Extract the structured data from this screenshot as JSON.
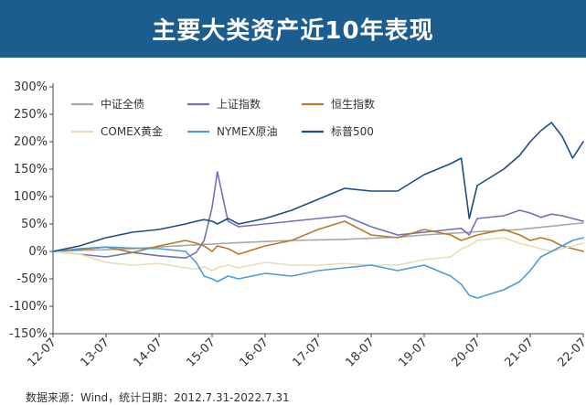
{
  "header": {
    "title": "主要大类资产近10年表现"
  },
  "footer": {
    "source": "数据来源：Wind，统计日期：2012.7.31-2022.7.31"
  },
  "chart_data": {
    "type": "line",
    "title": "主要大类资产近10年表现",
    "xlabel": "",
    "ylabel": "",
    "ylim": [
      -150,
      300
    ],
    "y_unit": "%",
    "yticks": [
      "-150%",
      "-100%",
      "-50%",
      "0%",
      "50%",
      "100%",
      "150%",
      "200%",
      "250%",
      "300%"
    ],
    "xticks": [
      "12-07",
      "13-07",
      "14-07",
      "15-07",
      "16-07",
      "17-07",
      "18-07",
      "19-07",
      "20-07",
      "21-07",
      "22-07"
    ],
    "grid": false,
    "legend_position": "top-left",
    "x": [
      0,
      0.5,
      1,
      1.5,
      2,
      2.5,
      2.7,
      2.85,
      3,
      3.1,
      3.3,
      3.5,
      4,
      4.5,
      5,
      5.5,
      6,
      6.5,
      7,
      7.5,
      7.7,
      7.85,
      8,
      8.5,
      8.8,
      9,
      9.2,
      9.4,
      9.6,
      9.8,
      10
    ],
    "series": [
      {
        "name": "中证全债",
        "color": "#a8a8a8",
        "values": [
          0,
          2,
          3,
          5,
          8,
          11,
          12,
          13,
          13,
          14,
          15,
          16,
          18,
          20,
          21,
          22,
          24,
          26,
          30,
          33,
          34,
          35,
          36,
          38,
          40,
          42,
          44,
          46,
          48,
          50,
          52
        ]
      },
      {
        "name": "上证指数",
        "color": "#6f72b8",
        "values": [
          0,
          -5,
          -10,
          -2,
          -8,
          -12,
          -2,
          20,
          80,
          145,
          55,
          45,
          50,
          55,
          60,
          65,
          45,
          30,
          35,
          40,
          42,
          30,
          60,
          65,
          75,
          70,
          62,
          68,
          65,
          60,
          55
        ]
      },
      {
        "name": "恒生指数",
        "color": "#b8792a",
        "values": [
          0,
          3,
          8,
          -2,
          10,
          20,
          15,
          10,
          0,
          10,
          5,
          -5,
          10,
          20,
          40,
          55,
          30,
          25,
          40,
          30,
          20,
          25,
          30,
          40,
          30,
          20,
          25,
          20,
          10,
          5,
          0
        ]
      },
      {
        "name": "COMEX黄金",
        "color": "#e8ddb5",
        "values": [
          0,
          -5,
          -20,
          -25,
          -22,
          -30,
          -32,
          -28,
          -35,
          -30,
          -25,
          -30,
          -20,
          -25,
          -25,
          -22,
          -25,
          -25,
          -15,
          -10,
          5,
          10,
          20,
          25,
          15,
          10,
          5,
          0,
          5,
          10,
          15
        ]
      },
      {
        "name": "NYMEX原油",
        "color": "#4d9cd9",
        "values": [
          0,
          5,
          8,
          6,
          5,
          0,
          -20,
          -45,
          -50,
          -55,
          -45,
          -50,
          -40,
          -45,
          -35,
          -30,
          -25,
          -35,
          -25,
          -45,
          -60,
          -80,
          -85,
          -70,
          -55,
          -35,
          -10,
          0,
          10,
          20,
          25
        ]
      },
      {
        "name": "标普500",
        "color": "#1d4e82",
        "values": [
          0,
          10,
          25,
          35,
          40,
          50,
          55,
          58,
          55,
          50,
          60,
          50,
          60,
          75,
          95,
          115,
          110,
          110,
          140,
          160,
          170,
          60,
          120,
          150,
          175,
          200,
          220,
          235,
          210,
          170,
          200
        ]
      }
    ]
  }
}
